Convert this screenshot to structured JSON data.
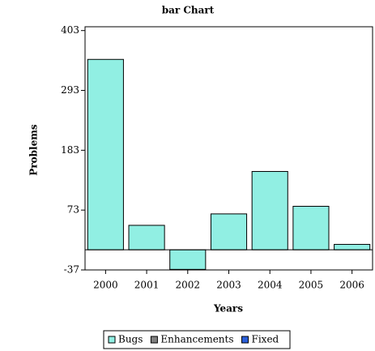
{
  "chart_data": {
    "type": "bar",
    "title": "bar Chart",
    "x_label": "Years",
    "y_label": "Problems",
    "categories": [
      "2000",
      "2001",
      "2002",
      "2003",
      "2004",
      "2005",
      "2006"
    ],
    "series": [
      {
        "name": "Bugs",
        "color": "#91efe3",
        "values": [
          350,
          45,
          -36,
          66,
          144,
          80,
          10
        ]
      },
      {
        "name": "Enhancements",
        "color": "#808080",
        "values": [
          null,
          null,
          null,
          null,
          null,
          null,
          null
        ]
      },
      {
        "name": "Fixed",
        "color": "#2b5fd9",
        "values": [
          null,
          null,
          null,
          null,
          null,
          null,
          null
        ]
      }
    ],
    "ylim": [
      -37,
      410
    ],
    "yticks": [
      -37,
      73,
      183,
      293,
      403
    ],
    "grid": false,
    "legend": "bottom"
  }
}
